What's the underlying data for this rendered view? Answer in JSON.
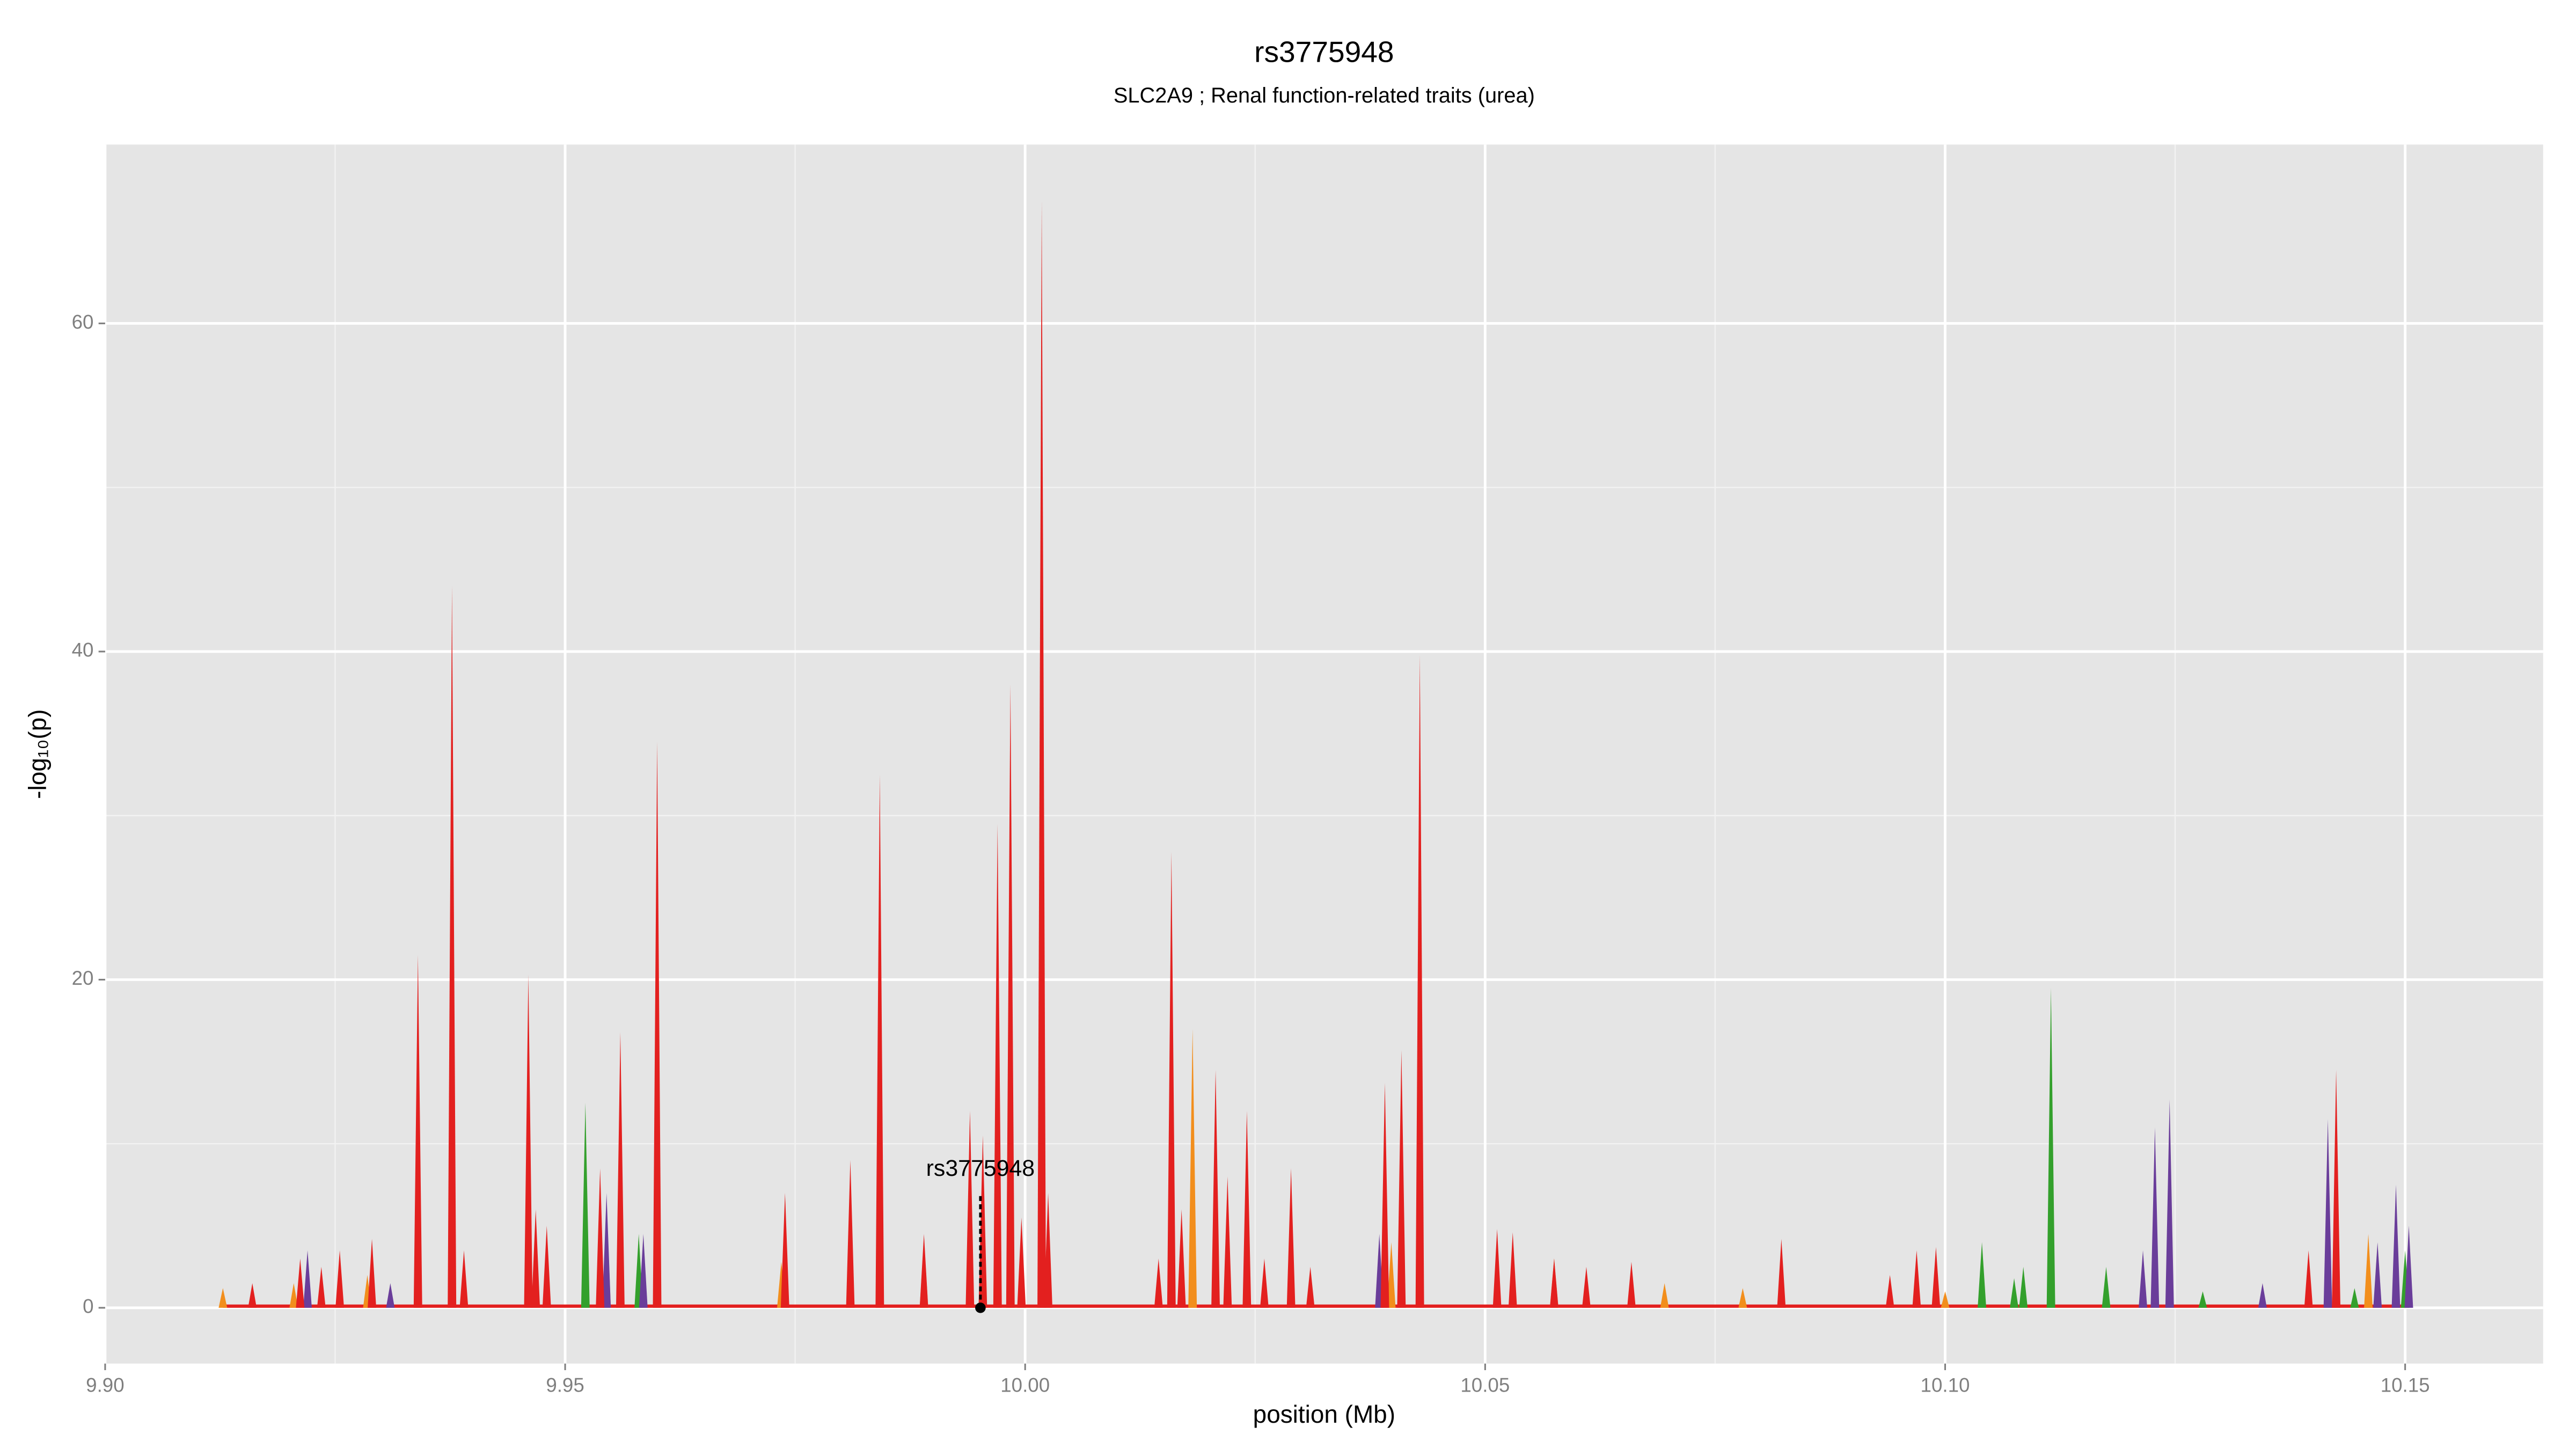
{
  "chart_data": {
    "type": "area",
    "title": "rs3775948",
    "subtitle": "SLC2A9 ; Renal function-related traits (urea)",
    "x_label": "position (Mb)",
    "y_label": "-log₁₀(p)",
    "xlim": [
      9.9,
      10.165
    ],
    "ylim": [
      -3.4,
      70.9
    ],
    "xticks": [
      {
        "value": 9.9,
        "label": "9.90"
      },
      9.95,
      {
        "value": 10.0,
        "label": "10.00"
      },
      10.05,
      {
        "value": 10.1,
        "label": "10.10"
      },
      10.15
    ],
    "yticks": [
      0,
      20,
      40,
      60
    ],
    "minor_xticks": [
      9.925,
      9.975,
      10.025,
      10.075,
      10.125
    ],
    "minor_yticks": [
      10,
      30,
      50
    ],
    "grid": true,
    "series": [
      {
        "name": "orange",
        "color": "#f28e1c",
        "x": [
          9.9128,
          9.9205,
          9.9285,
          9.9545,
          9.9735,
          9.989,
          10.0182,
          10.0398,
          10.0575,
          10.0695,
          10.078,
          10.1,
          10.146
        ],
        "values": [
          1.2,
          1.5,
          2.0,
          6.5,
          2.8,
          4.2,
          17.0,
          4.0,
          3.0,
          1.5,
          1.2,
          1.0,
          4.5
        ]
      },
      {
        "name": "green",
        "color": "#33a02c",
        "x": [
          9.9522,
          9.958,
          10.104,
          10.1075,
          10.1085,
          10.1115,
          10.1175,
          10.128,
          10.1395,
          10.1445,
          10.15
        ],
        "values": [
          12.5,
          4.5,
          4.0,
          1.8,
          2.5,
          19.5,
          2.5,
          1.0,
          1.5,
          1.2,
          3.5
        ]
      },
      {
        "name": "purple",
        "color": "#6a3d9a",
        "x": [
          9.922,
          9.931,
          9.9545,
          9.9585,
          10.0385,
          10.1215,
          10.1228,
          10.1244,
          10.1345,
          10.1416,
          10.147,
          10.149,
          10.1504
        ],
        "values": [
          3.5,
          1.5,
          7.0,
          4.5,
          4.5,
          3.5,
          11.0,
          12.7,
          1.5,
          11.5,
          4.0,
          7.5,
          5.0
        ]
      },
      {
        "name": "red",
        "color": "#e3201f",
        "x": [
          9.916,
          9.9212,
          9.9235,
          9.9255,
          9.929,
          9.934,
          9.9377,
          9.939,
          9.946,
          9.9468,
          9.948,
          9.9538,
          9.956,
          9.96,
          9.9739,
          9.981,
          9.9842,
          9.989,
          9.994,
          9.9954,
          9.997,
          9.9984,
          9.9996,
          10.0018,
          10.0025,
          10.0145,
          10.0159,
          10.017,
          10.0207,
          10.022,
          10.0241,
          10.026,
          10.0289,
          10.031,
          10.0391,
          10.0409,
          10.0429,
          10.0513,
          10.053,
          10.0575,
          10.061,
          10.0659,
          10.0822,
          10.094,
          10.0969,
          10.099,
          10.1395,
          10.1425
        ],
        "values": [
          1.5,
          3.0,
          2.5,
          3.5,
          4.2,
          21.5,
          44.0,
          3.5,
          20.3,
          6.0,
          5.0,
          8.5,
          16.8,
          34.5,
          7.0,
          9.0,
          32.5,
          4.5,
          12.0,
          10.5,
          29.5,
          38.0,
          5.5,
          67.5,
          7.0,
          3.0,
          27.8,
          6.0,
          14.5,
          8.0,
          12.0,
          3.0,
          8.5,
          2.5,
          13.7,
          15.7,
          39.8,
          4.8,
          4.6,
          3.0,
          2.5,
          2.8,
          4.2,
          2.0,
          3.5,
          3.7,
          3.5,
          14.5
        ]
      }
    ],
    "annotation": {
      "text": "rs3775948",
      "x": 9.99514,
      "y": 0
    }
  }
}
